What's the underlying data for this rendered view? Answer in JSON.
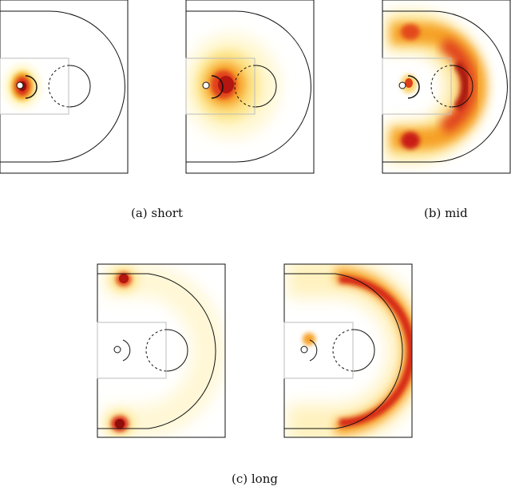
{
  "captions": {
    "short": "(a) short",
    "mid": "(b) mid",
    "long": "(c) long"
  },
  "colors": {
    "court_line": "#111111",
    "paint_line": "#bdbdbd",
    "heat_low": "#fffde0",
    "heat_mid": "#f7a21e",
    "heat_high": "#d62516",
    "heat_max": "#8f0d0a"
  }
}
